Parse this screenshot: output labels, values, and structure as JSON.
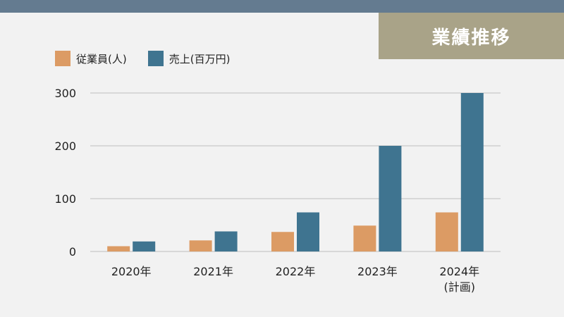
{
  "header": {
    "badge": "業績推移"
  },
  "colors": {
    "employees": "#dc9b64",
    "sales": "#3f7490",
    "grid": "#bdbdbd"
  },
  "legend": [
    {
      "label": "従業員(人)",
      "color": "#dc9b64"
    },
    {
      "label": "売上(百万円)",
      "color": "#3f7490"
    }
  ],
  "chart_data": {
    "type": "bar",
    "categories": [
      [
        "2020年"
      ],
      [
        "2021年"
      ],
      [
        "2022年"
      ],
      [
        "2023年"
      ],
      [
        "2024年",
        "(計画)"
      ]
    ],
    "series": [
      {
        "name": "従業員(人)",
        "values": [
          10,
          21,
          37,
          49,
          74
        ]
      },
      {
        "name": "売上(百万円)",
        "values": [
          19,
          38,
          74,
          200,
          300
        ]
      }
    ],
    "ylim": [
      0,
      300
    ],
    "yticks": [
      0,
      100,
      200,
      300
    ],
    "grid": true,
    "legend_position": "top-left"
  }
}
